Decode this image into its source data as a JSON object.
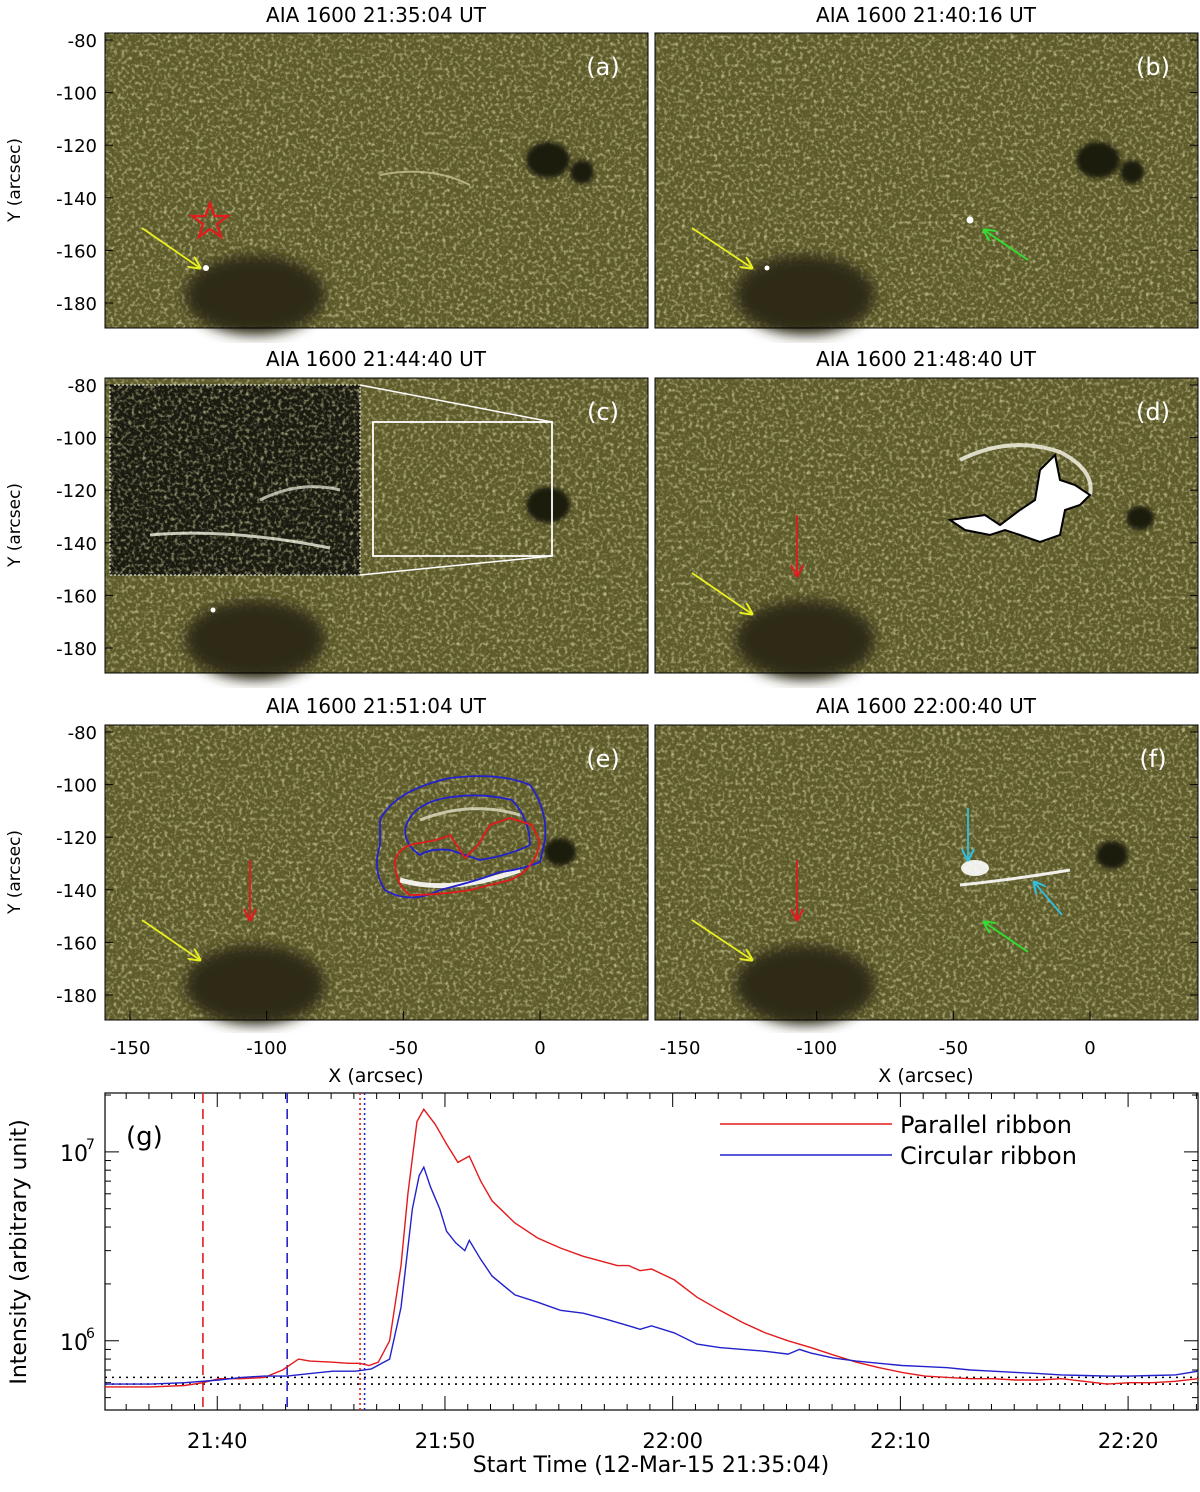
{
  "panels": [
    {
      "id": "a",
      "title": "AIA 1600  21:35:04 UT",
      "label": "(a)"
    },
    {
      "id": "b",
      "title": "AIA 1600  21:40:16 UT",
      "label": "(b)"
    },
    {
      "id": "c",
      "title": "AIA 1600  21:44:40 UT",
      "label": "(c)"
    },
    {
      "id": "d",
      "title": "AIA 1600  21:48:40 UT",
      "label": "(d)"
    },
    {
      "id": "e",
      "title": "AIA 1600  21:51:04 UT",
      "label": "(e)"
    },
    {
      "id": "f",
      "title": "AIA 1600  22:00:40 UT",
      "label": "(f)"
    }
  ],
  "image_axes": {
    "xlabel": "X (arcsec)",
    "ylabel": "Y (arcsec)",
    "xticks": [
      "-150",
      "-100",
      "-50",
      "0"
    ],
    "yticks": [
      "-80",
      "-100",
      "-120",
      "-140",
      "-160",
      "-180"
    ]
  },
  "colors": {
    "image_bg": "#5f5c2c",
    "image_dark": "#2e2c12",
    "red": "#e41a1c",
    "blue": "#2222cc",
    "yellow": "#e8f020",
    "green": "#30e030",
    "cyan": "#30c0e0"
  },
  "chart_data": {
    "type": "line",
    "label": "(g)",
    "xlabel": "Start Time (12-Mar-15 21:35:04)",
    "ylabel": "Intensity (arbitrary unit)",
    "xtick_labels": [
      "21:40",
      "21:50",
      "22:00",
      "22:10",
      "22:20"
    ],
    "ytick_labels": [
      "10",
      "10"
    ],
    "ytick_exponents": [
      "6",
      "7"
    ],
    "yscale": "log",
    "xlim_min": [
      0,
      48
    ],
    "ylim": [
      430000,
      20500000
    ],
    "series": [
      {
        "name": "Parallel ribbon",
        "color": "#e41a1c",
        "x": [
          0,
          2,
          3.5,
          4.3,
          5,
          6,
          7,
          7.8,
          8.5,
          9,
          10,
          10.7,
          11.2,
          11.6,
          12,
          12.5,
          13,
          13.3,
          13.7,
          14,
          14.5,
          15,
          15.5,
          16,
          16.5,
          17,
          18,
          19,
          20,
          21,
          22,
          22.5,
          23,
          23.5,
          24,
          25,
          26,
          27,
          28,
          29,
          30,
          31,
          32,
          33,
          34,
          35,
          36,
          37,
          38,
          39,
          40,
          41,
          42,
          43,
          44,
          45,
          46,
          47,
          48
        ],
        "y": [
          570000,
          570000,
          580000,
          600000,
          630000,
          630000,
          640000,
          700000,
          800000,
          780000,
          770000,
          760000,
          760000,
          740000,
          770000,
          1000000,
          2500000,
          6000000,
          14500000,
          16800000,
          14000000,
          11000000,
          8800000,
          9500000,
          7000000,
          5500000,
          4200000,
          3500000,
          3100000,
          2800000,
          2600000,
          2500000,
          2500000,
          2350000,
          2400000,
          2100000,
          1700000,
          1450000,
          1250000,
          1100000,
          1000000,
          920000,
          840000,
          770000,
          720000,
          680000,
          650000,
          640000,
          630000,
          630000,
          620000,
          620000,
          630000,
          610000,
          590000,
          600000,
          600000,
          610000,
          630000
        ]
      },
      {
        "name": "Circular ribbon",
        "color": "#2222cc",
        "x": [
          0,
          2,
          3.5,
          5,
          6,
          7,
          8,
          9,
          10,
          11,
          11.7,
          12.5,
          13,
          13.5,
          13.8,
          14,
          14.3,
          14.7,
          15,
          15.4,
          15.8,
          16,
          16.5,
          17,
          18,
          19,
          20,
          21,
          22,
          23,
          23.5,
          24,
          25,
          26,
          27,
          28,
          29,
          30,
          30.5,
          31,
          32,
          33,
          34,
          35,
          36,
          37,
          38,
          39,
          40,
          41,
          42,
          43,
          44,
          45,
          46,
          47,
          48
        ],
        "y": [
          590000,
          590000,
          600000,
          620000,
          640000,
          650000,
          650000,
          670000,
          690000,
          690000,
          710000,
          800000,
          1500000,
          5000000,
          7500000,
          8300000,
          6500000,
          5000000,
          3800000,
          3300000,
          3000000,
          3400000,
          2700000,
          2200000,
          1750000,
          1600000,
          1450000,
          1400000,
          1300000,
          1200000,
          1150000,
          1200000,
          1100000,
          960000,
          920000,
          900000,
          880000,
          850000,
          900000,
          860000,
          810000,
          780000,
          760000,
          740000,
          730000,
          720000,
          700000,
          690000,
          680000,
          670000,
          660000,
          655000,
          650000,
          650000,
          655000,
          660000,
          690000
        ]
      }
    ],
    "vlines": [
      {
        "x": 4.3,
        "color": "#e41a1c",
        "style": "dashed"
      },
      {
        "x": 8,
        "color": "#2222cc",
        "style": "dashed"
      },
      {
        "x": 11.2,
        "color": "#e41a1c",
        "style": "dotted"
      },
      {
        "x": 11.4,
        "color": "#2222cc",
        "style": "dotted"
      }
    ],
    "hlines": [
      {
        "y": 640000
      },
      {
        "y": 590000
      }
    ],
    "legend_position": "top-right",
    "grid": false
  }
}
